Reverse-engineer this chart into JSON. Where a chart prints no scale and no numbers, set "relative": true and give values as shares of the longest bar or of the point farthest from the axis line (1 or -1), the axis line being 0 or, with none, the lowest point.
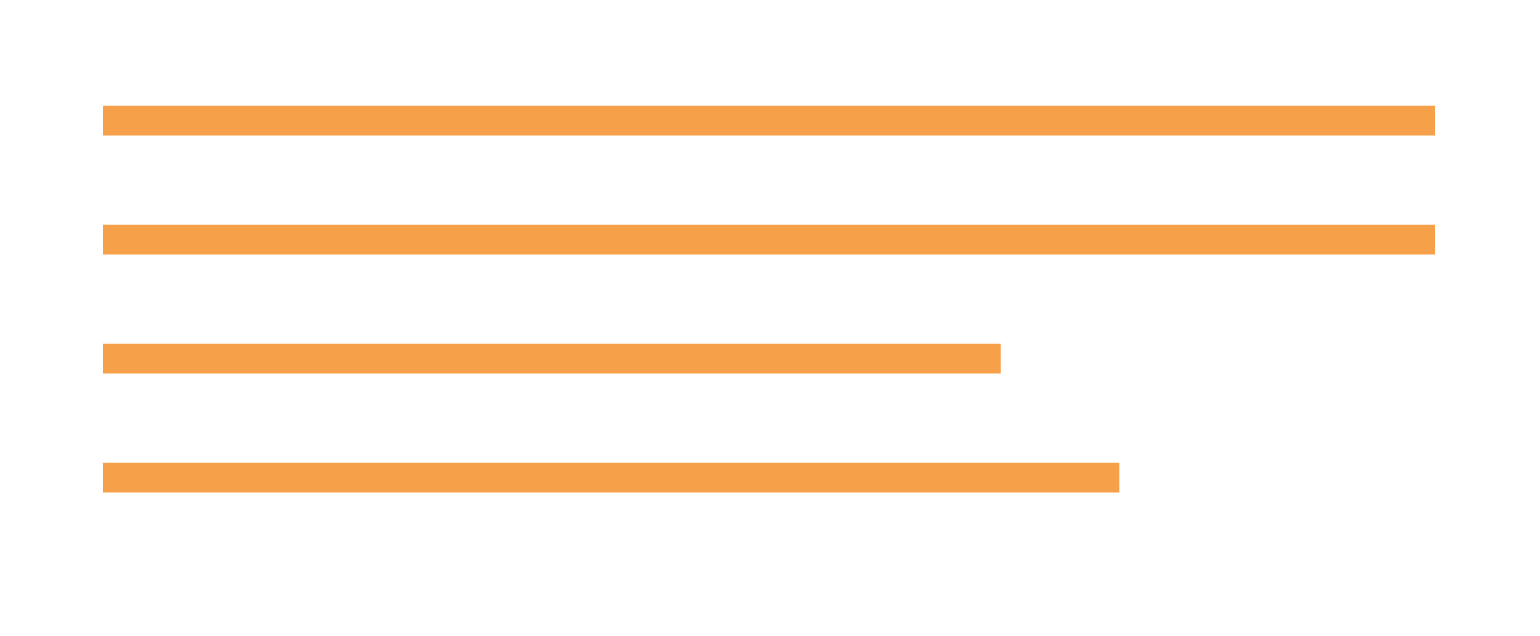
{
  "chart_data": {
    "type": "bar",
    "orientation": "horizontal",
    "relative": true,
    "categories": [
      null,
      null,
      null,
      null
    ],
    "values": [
      1,
      1,
      0.674,
      0.763
    ],
    "color": "#f7a04a"
  }
}
